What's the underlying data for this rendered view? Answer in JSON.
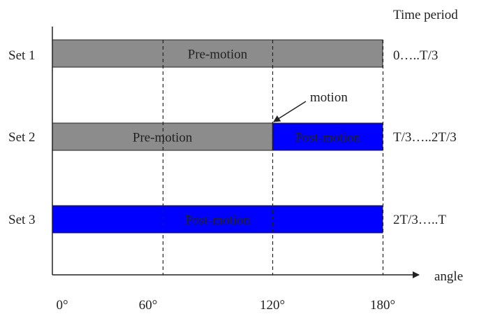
{
  "header": {
    "time_period": "Time period"
  },
  "rows": [
    {
      "label": "Set 1",
      "period": "0…..T/3",
      "segments": [
        {
          "from": 0,
          "to": 180,
          "phase": "pre",
          "text": "Pre-motion"
        }
      ]
    },
    {
      "label": "Set 2",
      "period": "T/3…..2T/3",
      "segments": [
        {
          "from": 0,
          "to": 120,
          "phase": "pre",
          "text": "Pre-motion"
        },
        {
          "from": 120,
          "to": 180,
          "phase": "post",
          "text": "Post-motion"
        }
      ]
    },
    {
      "label": "Set 3",
      "period": "2T/3…..T",
      "segments": [
        {
          "from": 0,
          "to": 180,
          "phase": "post",
          "text": "Post-motion"
        }
      ]
    }
  ],
  "annotation": {
    "text": "motion",
    "at_angle": 120
  },
  "axis": {
    "label": "angle",
    "ticks": [
      "0°",
      "60°",
      "120°",
      "180°"
    ],
    "tick_values": [
      0,
      60,
      120,
      180
    ],
    "dashed_at": [
      60,
      120,
      180
    ],
    "range": [
      0,
      180
    ]
  },
  "colors": {
    "pre": "#8c8c8c",
    "post": "#0000ff",
    "line": "#222222"
  }
}
